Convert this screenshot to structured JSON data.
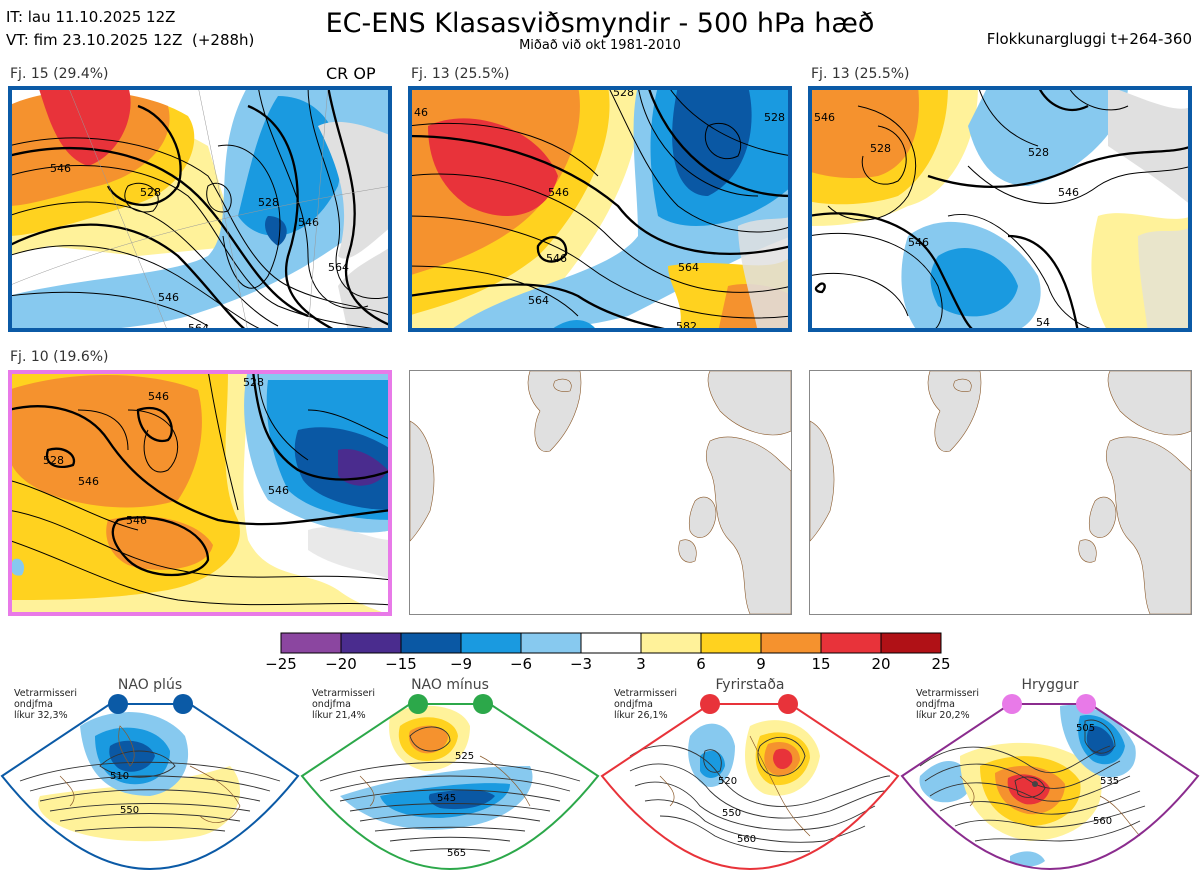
{
  "header": {
    "it_line": "IT: lau 11.10.2025 12Z",
    "vt_line": "VT: fim 23.10.2025 12Z  (+288h)",
    "title": "EC-ENS Klasasviðsmyndir - 500 hPa hæð",
    "subtitle": "Miðað við okt 1981-2010",
    "window": "Flokkunargluggi t+264-360"
  },
  "panels": [
    {
      "label": "Fj. 15 (29.4%)",
      "op": "CR OP",
      "border": "#0b5aa6",
      "contours": [
        "546",
        "528",
        "528",
        "546",
        "564",
        "546",
        "564"
      ]
    },
    {
      "label": "Fj. 13 (25.5%)",
      "op": "",
      "border": "#0b5aa6",
      "contours": [
        "46",
        "528",
        "546",
        "528",
        "564",
        "546",
        "564",
        "582"
      ]
    },
    {
      "label": "Fj. 13 (25.5%)",
      "op": "",
      "border": "#0b5aa6",
      "contours": [
        "546",
        "528",
        "528",
        "546",
        "546",
        "54"
      ]
    },
    {
      "label": "Fj. 10 (19.6%)",
      "op": "",
      "border": "#e87ae8",
      "contours": [
        "528",
        "528",
        "546",
        "546",
        "546",
        "546"
      ]
    },
    {
      "label": "",
      "op": "",
      "border": "#777777",
      "contours": []
    },
    {
      "label": "",
      "op": "",
      "border": "#777777",
      "contours": []
    }
  ],
  "colorbar": {
    "colors": [
      "#8b46a0",
      "#4a2c8e",
      "#0a58a4",
      "#1a9ae0",
      "#87c9ef",
      "#ffffff",
      "#fff29a",
      "#ffd21f",
      "#f5922e",
      "#e8333a",
      "#b01116"
    ],
    "ticks": [
      "−25",
      "−20",
      "−15",
      "−9",
      "−6",
      "−3",
      "3",
      "6",
      "9",
      "15",
      "20",
      "25"
    ]
  },
  "regimes": [
    {
      "title": "NAO plús",
      "note": [
        "Vetrarmisseri",
        "ondjfma",
        "líkur 32,3%"
      ],
      "color": "#0b5aa6",
      "dot": "#0b5aa6",
      "labels": [
        "510",
        "550"
      ]
    },
    {
      "title": "NAO mínus",
      "note": [
        "Vetrarmisseri",
        "ondjfma",
        "líkur 21,4%"
      ],
      "color": "#2ca84a",
      "dot": "#2ca84a",
      "labels": [
        "525",
        "545",
        "565"
      ]
    },
    {
      "title": "Fyrirstaða",
      "note": [
        "Vetrarmisseri",
        "ondjfma",
        "líkur 26,1%"
      ],
      "color": "#e8333a",
      "dot": "#e8333a",
      "labels": [
        "520",
        "550",
        "560"
      ]
    },
    {
      "title": "Hryggur",
      "note": [
        "Vetrarmisseri",
        "ondjfma",
        "líkur 20,2%"
      ],
      "color": "#8b2c8e",
      "dot": "#e87ae8",
      "labels": [
        "505",
        "535",
        "560"
      ]
    }
  ]
}
